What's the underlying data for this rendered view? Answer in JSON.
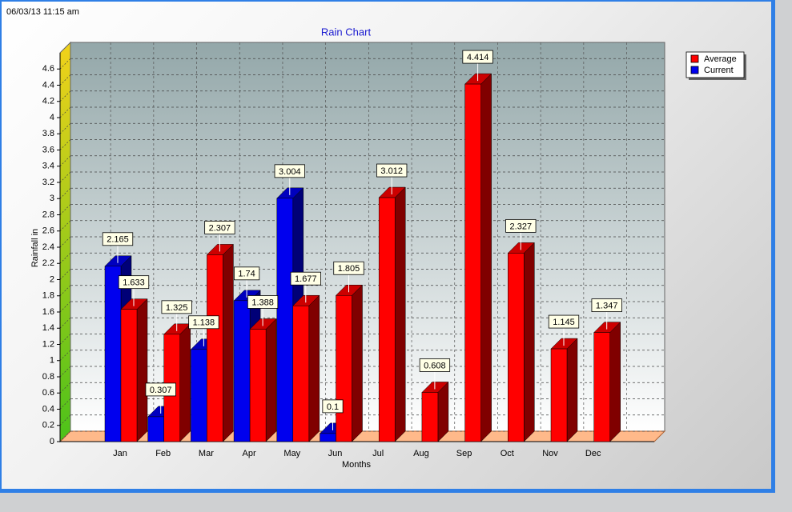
{
  "chart_data": {
    "type": "bar3d",
    "timestamp": "06/03/13 11:15 am",
    "title": "Rain Chart",
    "x_label": "Months",
    "y_label": "Rainfall in",
    "categories": [
      "Jan",
      "Feb",
      "Mar",
      "Apr",
      "May",
      "Jun",
      "Jul",
      "Aug",
      "Sep",
      "Oct",
      "Nov",
      "Dec"
    ],
    "series": [
      {
        "name": "Current",
        "color": "#0000ee",
        "values": [
          2.165,
          0.307,
          1.138,
          1.74,
          3.004,
          0.1,
          null,
          null,
          null,
          null,
          null,
          null
        ]
      },
      {
        "name": "Average",
        "color": "#ff0000",
        "values": [
          1.633,
          1.325,
          2.307,
          1.388,
          1.677,
          1.805,
          3.012,
          0.608,
          4.414,
          2.327,
          1.145,
          1.347
        ]
      }
    ],
    "legend_order": [
      1,
      0
    ],
    "ylim": [
      0,
      4.8
    ],
    "yticks": [
      0,
      0.2,
      0.4,
      0.6,
      0.8,
      1,
      1.2,
      1.4,
      1.6,
      1.8,
      2,
      2.2,
      2.4,
      2.6,
      2.8,
      3,
      3.2,
      3.4,
      3.6,
      3.8,
      4,
      4.2,
      4.4,
      4.6
    ],
    "grid": true,
    "legend": "top-right",
    "data_labels": true
  }
}
